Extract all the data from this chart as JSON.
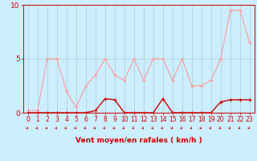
{
  "xlabel": "Vent moyen/en rafales ( km/h )",
  "background_color": "#cceeff",
  "grid_color": "#aacccc",
  "x": [
    0,
    1,
    2,
    3,
    4,
    5,
    6,
    7,
    8,
    9,
    10,
    11,
    12,
    13,
    14,
    15,
    16,
    17,
    18,
    19,
    20,
    21,
    22,
    23
  ],
  "rafales": [
    0.2,
    0.2,
    5.0,
    5.0,
    2.0,
    0.5,
    2.5,
    3.5,
    5.0,
    3.5,
    3.0,
    5.0,
    3.0,
    5.0,
    5.0,
    3.0,
    5.0,
    2.5,
    2.5,
    3.0,
    5.0,
    9.5,
    9.5,
    6.5
  ],
  "vent_moyen": [
    0.0,
    0.0,
    0.0,
    0.0,
    0.0,
    0.0,
    0.0,
    0.2,
    1.3,
    1.2,
    0.0,
    0.0,
    0.0,
    0.0,
    1.3,
    0.0,
    0.0,
    0.0,
    0.0,
    0.0,
    1.0,
    1.2,
    1.2,
    1.2
  ],
  "ylim": [
    0,
    10
  ],
  "xlim": [
    -0.5,
    23.5
  ],
  "yticks": [
    0,
    5,
    10
  ],
  "xticks": [
    0,
    1,
    2,
    3,
    4,
    5,
    6,
    7,
    8,
    9,
    10,
    11,
    12,
    13,
    14,
    15,
    16,
    17,
    18,
    19,
    20,
    21,
    22,
    23
  ],
  "rafales_color": "#ff9999",
  "vent_color": "#cc0000",
  "linewidth_rafales": 0.8,
  "linewidth_vent": 1.0,
  "tick_color": "#cc0000",
  "spine_color": "#cc0000",
  "xlabel_fontsize": 6.5,
  "tick_fontsize": 5.5,
  "ytick_fontsize": 6.5
}
